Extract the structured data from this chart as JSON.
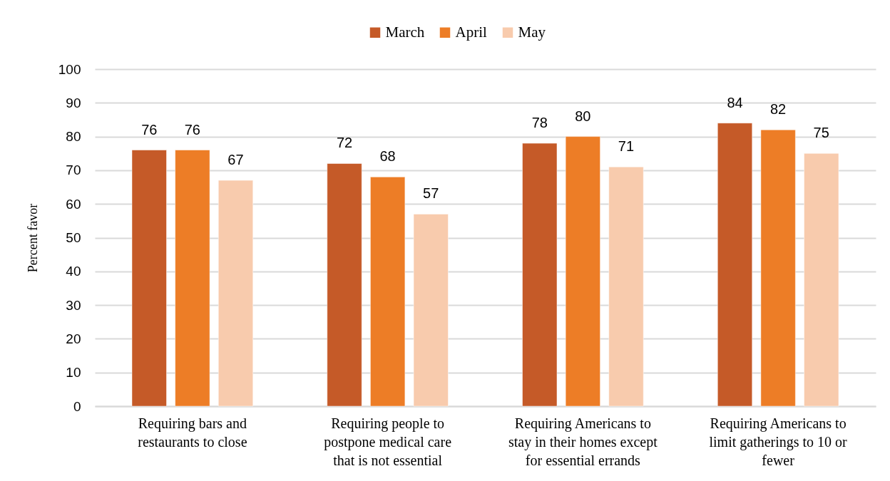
{
  "chart_data": {
    "type": "bar",
    "categories": [
      "Requiring bars and restaurants to close",
      "Requiring people to postpone medical care that is not essential",
      "Requiring Americans to stay in their homes except for essential errands",
      "Requiring Americans to limit gatherings to 10 or fewer"
    ],
    "series": [
      {
        "name": "March",
        "color": "#c55a28",
        "values": [
          76,
          72,
          78,
          84
        ]
      },
      {
        "name": "April",
        "color": "#ed7d26",
        "values": [
          76,
          68,
          80,
          82
        ]
      },
      {
        "name": "May",
        "color": "#f8cbad",
        "values": [
          67,
          57,
          71,
          75
        ]
      }
    ],
    "ylabel": "Percent favor",
    "ylim": [
      0,
      100
    ],
    "yticks": [
      0,
      10,
      20,
      30,
      40,
      50,
      60,
      70,
      80,
      90,
      100
    ],
    "grid": "y",
    "legend": "top",
    "data_labels": true
  }
}
